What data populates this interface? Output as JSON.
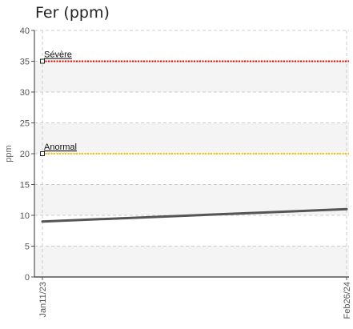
{
  "chart_data": {
    "type": "line",
    "title": "Fer (ppm)",
    "xlabel": "",
    "ylabel": "ppm",
    "x_ticks": [
      "Jan11/23",
      "Feb26/24"
    ],
    "ylim": [
      0,
      40
    ],
    "y_ticks": [
      0,
      5,
      10,
      15,
      20,
      25,
      30,
      35,
      40
    ],
    "grid": true,
    "series": [
      {
        "values": [
          {
            "x": "Jan11/23",
            "y": 9
          },
          {
            "x": "Feb26/24",
            "y": 11
          }
        ]
      }
    ],
    "thresholds": [
      {
        "label": "Anormal",
        "y": 20,
        "color": "#f2c500"
      },
      {
        "label": "Sévère",
        "y": 35,
        "color": "#e60000"
      }
    ],
    "colors": {
      "line": "#555555",
      "band": "#f4f4f4",
      "grid": "#cccccc"
    }
  }
}
